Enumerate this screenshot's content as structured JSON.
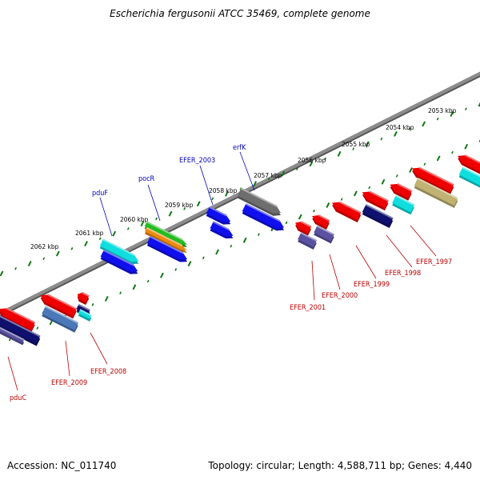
{
  "title": "Escherichia fergusonii ATCC 35469, complete genome",
  "footer": {
    "accession": "Accession: NC_011740",
    "summary": "Topology: circular; Length: 4,588,711 bp; Genes: 4,440"
  },
  "scale_labels": [
    "2053 kbp",
    "2054 kbp",
    "2055 kbp",
    "2056 kbp",
    "2057 kbp",
    "2058 kbp",
    "2059 kbp",
    "2060 kbp",
    "2061 kbp",
    "2062 kbp"
  ],
  "colors": {
    "red": "#ee0000",
    "blue": "#1010ee",
    "navy": "#10106e",
    "cyan": "#10dede",
    "slate": "#5a52a0",
    "khaki": "#bfb272",
    "gray": "#6e6e6e",
    "green": "#22bb22",
    "orange": "#ee8a10",
    "backbone": "#8c8c8c",
    "tick": "#117711",
    "upper_label": "#0000bb",
    "lower_label": "#bb0000"
  },
  "upper_labels": [
    "pduF",
    "pocR",
    "EFER_2003",
    "erfK"
  ],
  "lower_labels": [
    "EFER_1997",
    "EFER_1998",
    "EFER_1999",
    "EFER_2000",
    "EFER_2001",
    "EFER_2008",
    "EFER_2009",
    "pduC"
  ]
}
